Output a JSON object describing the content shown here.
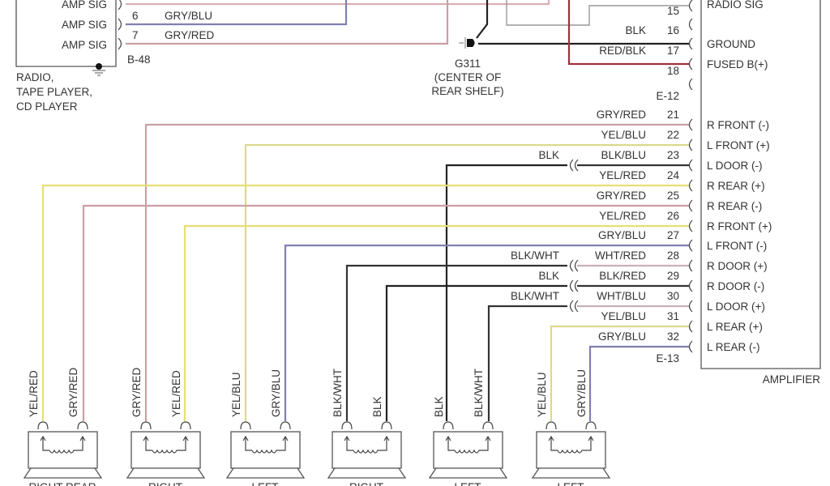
{
  "colors": {
    "GRY/RED": "#c9a0a4",
    "YEL/RED": "#e6df72",
    "YEL/BLU": "#ddd98a",
    "GRY/BLU": "#7f7fb0",
    "BLK": "#222222",
    "BLK/WHT": "#333333",
    "RED/BLK": "#a03040",
    "GRY": "#999999",
    "AMP5": "#d8b0b4"
  },
  "radio": {
    "pins": [
      {
        "function": "AMP SIG",
        "num": "",
        "wire": ""
      },
      {
        "function": "AMP SIG",
        "num": "6",
        "wire": "GRY/BLU"
      },
      {
        "function": "AMP SIG",
        "num": "7",
        "wire": "GRY/RED"
      }
    ],
    "connector": "B-48",
    "label_lines": [
      "RADIO,",
      "TAPE PLAYER,",
      "CD PLAYER"
    ]
  },
  "ground": {
    "id": "G311",
    "note_lines": [
      "(CENTER OF",
      "REAR SHELF)"
    ]
  },
  "amplifier": {
    "label": "AMPLIFIER",
    "connector_top": "E-12",
    "connector_bottom": "E-13",
    "top_function": "RADIO SIG",
    "top_pins": [
      {
        "num": "15",
        "wire": "",
        "function": ""
      },
      {
        "num": "16",
        "wire": "BLK",
        "function": "GROUND"
      },
      {
        "num": "17",
        "wire": "RED/BLK",
        "function": "FUSED B(+)"
      },
      {
        "num": "18",
        "wire": "",
        "function": ""
      }
    ],
    "pins": [
      {
        "num": "21",
        "wire": "GRY/RED",
        "inline": "",
        "function": "R FRONT (-)"
      },
      {
        "num": "22",
        "wire": "YEL/BLU",
        "inline": "",
        "function": "L FRONT (+)"
      },
      {
        "num": "23",
        "wire": "BLK/BLU",
        "inline": "BLK",
        "function": "L DOOR (-)"
      },
      {
        "num": "24",
        "wire": "YEL/RED",
        "inline": "",
        "function": "R REAR (+)"
      },
      {
        "num": "25",
        "wire": "GRY/RED",
        "inline": "",
        "function": "R REAR (-)"
      },
      {
        "num": "26",
        "wire": "YEL/RED",
        "inline": "",
        "function": "R FRONT (+)"
      },
      {
        "num": "27",
        "wire": "GRY/BLU",
        "inline": "",
        "function": "L FRONT (-)"
      },
      {
        "num": "28",
        "wire": "WHT/RED",
        "inline": "BLK/WHT",
        "function": "R DOOR (+)"
      },
      {
        "num": "29",
        "wire": "BLK/RED",
        "inline": "BLK",
        "function": "R DOOR (-)"
      },
      {
        "num": "30",
        "wire": "WHT/BLU",
        "inline": "BLK/WHT",
        "function": "L DOOR (+)"
      },
      {
        "num": "31",
        "wire": "YEL/BLU",
        "inline": "",
        "function": "L REAR (+)"
      },
      {
        "num": "32",
        "wire": "GRY/BLU",
        "inline": "",
        "function": "L REAR (-)"
      }
    ]
  },
  "speakers": [
    {
      "name": "RIGHT REAR",
      "wires": [
        "YEL/RED",
        "GRY/RED"
      ]
    },
    {
      "name": "RIGHT",
      "wires": [
        "GRY/RED",
        "YEL/RED"
      ]
    },
    {
      "name": "LEFT",
      "wires": [
        "YEL/BLU",
        "GRY/BLU"
      ]
    },
    {
      "name": "RIGHT",
      "wires": [
        "BLK/WHT",
        "BLK"
      ]
    },
    {
      "name": "LEFT",
      "wires": [
        "BLK",
        "BLK/WHT"
      ]
    },
    {
      "name": "LEFT",
      "wires": [
        "YEL/BLU",
        "GRY/BLU"
      ]
    }
  ]
}
